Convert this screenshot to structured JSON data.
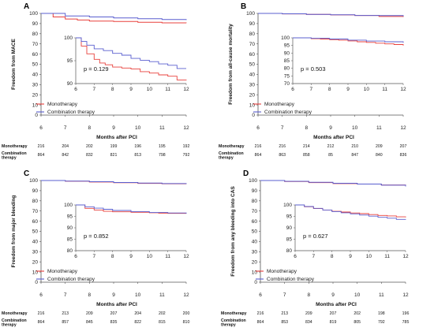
{
  "colors": {
    "monotherapy": "#e8403c",
    "combination": "#5a5fcf",
    "axis": "#555555"
  },
  "chart_data": [
    {
      "type": "line",
      "panel": "A",
      "ylabel": "Freedom from MACE",
      "xlabel": "Months after PCI",
      "xlim": [
        6,
        12
      ],
      "ylim": [
        0,
        100
      ],
      "x_ticks": [
        "6",
        "7",
        "8",
        "9",
        "10",
        "11",
        "12"
      ],
      "y_ticks": [
        "0",
        "10",
        "20",
        "30",
        "40",
        "50",
        "60",
        "70",
        "80",
        "90",
        "100"
      ],
      "series": [
        {
          "name": "Monotherapy",
          "x": [
            6,
            6.5,
            7,
            7.5,
            8,
            9,
            10,
            11,
            12
          ],
          "values": [
            100,
            96.5,
            94.5,
            93.5,
            92.5,
            92,
            91.3,
            90.7,
            90.5
          ]
        },
        {
          "name": "Combination therapy",
          "x": [
            6,
            7,
            8,
            9,
            10,
            11,
            12
          ],
          "values": [
            100,
            97.5,
            96.5,
            95.5,
            94.8,
            94,
            93.5
          ]
        }
      ],
      "inset": {
        "xlim": [
          6,
          12
        ],
        "ylim": [
          90,
          100
        ],
        "x_ticks": [
          "6",
          "7",
          "8",
          "9",
          "10",
          "11",
          "12"
        ],
        "y_ticks": [
          "90",
          "95",
          "100"
        ],
        "series": [
          {
            "name": "Monotherapy",
            "x": [
              6,
              6.3,
              6.6,
              7,
              7.3,
              7.6,
              8,
              8.5,
              9,
              9.5,
              10,
              10.5,
              11,
              11.5,
              12
            ],
            "values": [
              100,
              98.2,
              96.5,
              95.3,
              94.5,
              94.1,
              93.6,
              93.4,
              93.2,
              92.6,
              92.3,
              91.9,
              91.6,
              90.8,
              90.7
            ]
          },
          {
            "name": "Combination therapy",
            "x": [
              6,
              6.3,
              6.6,
              7,
              7.5,
              8,
              8.5,
              9,
              9.5,
              10,
              10.5,
              11,
              11.5,
              12
            ],
            "values": [
              100,
              99.2,
              98.4,
              97.6,
              97.2,
              96.6,
              96.2,
              95.5,
              95.1,
              94.8,
              94.3,
              94,
              93.3,
              93.3
            ]
          }
        ],
        "p_value": "p = 0.129"
      },
      "risk_table": {
        "rows": [
          {
            "label": "Monotherapy",
            "values": [
              "216",
              "204",
              "202",
              "199",
              "196",
              "195",
              "192"
            ]
          },
          {
            "label": "Combination therapy",
            "values": [
              "864",
              "842",
              "832",
              "821",
              "813",
              "798",
              "792"
            ]
          }
        ]
      }
    },
    {
      "type": "line",
      "panel": "B",
      "ylabel": "Freedom from all-cause mortality",
      "xlabel": "Months after PCI",
      "xlim": [
        6,
        12
      ],
      "ylim": [
        0,
        100
      ],
      "x_ticks": [
        "6",
        "7",
        "8",
        "9",
        "10",
        "11",
        "12"
      ],
      "y_ticks": [
        "0",
        "10",
        "20",
        "30",
        "40",
        "50",
        "60",
        "70",
        "80",
        "90",
        "100"
      ],
      "series": [
        {
          "name": "Monotherapy",
          "x": [
            6,
            7,
            8,
            9,
            10,
            11,
            12
          ],
          "values": [
            100,
            99.5,
            99,
            98.5,
            98,
            97,
            96.5
          ]
        },
        {
          "name": "Combination therapy",
          "x": [
            6,
            7,
            8,
            9,
            10,
            11,
            12
          ],
          "values": [
            100,
            99.6,
            99.1,
            98.6,
            98,
            97.8,
            97.2
          ]
        }
      ],
      "inset": {
        "xlim": [
          6,
          12
        ],
        "ylim": [
          70,
          100
        ],
        "x_ticks": [
          "6",
          "7",
          "8",
          "9",
          "10",
          "11",
          "12"
        ],
        "y_ticks": [
          "70",
          "75",
          "80",
          "85",
          "90",
          "95",
          "100"
        ],
        "series": [
          {
            "name": "Monotherapy",
            "x": [
              6,
              7,
              7.5,
              8,
              8.5,
              9,
              9.5,
              10,
              10.5,
              11,
              11.5,
              12
            ],
            "values": [
              100,
              99.5,
              99.2,
              98.8,
              98.5,
              98,
              97.4,
              97,
              96.5,
              96,
              95.6,
              95
            ]
          },
          {
            "name": "Combination therapy",
            "x": [
              6,
              7,
              8,
              9,
              10,
              11,
              12
            ],
            "values": [
              100,
              99.7,
              99.2,
              98.5,
              97.9,
              97.4,
              96.8
            ]
          }
        ],
        "p_value": "p = 0.503"
      },
      "risk_table": {
        "rows": [
          {
            "label": "Monotherapy",
            "values": [
              "216",
              "216",
              "214",
              "212",
              "210",
              "209",
              "207"
            ]
          },
          {
            "label": "Combination therapy",
            "values": [
              "864",
              "863",
              "858",
              "85",
              "847",
              "840",
              "836"
            ]
          }
        ]
      }
    },
    {
      "type": "line",
      "panel": "C",
      "ylabel": "Freedom from major bleeding",
      "xlabel": "Months after PCI",
      "xlim": [
        6,
        12
      ],
      "ylim": [
        0,
        100
      ],
      "x_ticks": [
        "6",
        "7",
        "8",
        "9",
        "10",
        "11",
        "12"
      ],
      "y_ticks": [
        "0",
        "10",
        "20",
        "30",
        "40",
        "50",
        "60",
        "70",
        "80",
        "90",
        "100"
      ],
      "series": [
        {
          "name": "Monotherapy",
          "x": [
            6,
            7,
            8,
            9,
            10,
            11,
            12
          ],
          "values": [
            100,
            99.3,
            98.5,
            97.8,
            97.2,
            96.8,
            96.5
          ]
        },
        {
          "name": "Combination therapy",
          "x": [
            6,
            7,
            8,
            9,
            10,
            11,
            12
          ],
          "values": [
            100,
            99.4,
            98.8,
            98.1,
            97.5,
            97,
            96.6
          ]
        }
      ],
      "inset": {
        "xlim": [
          6,
          12
        ],
        "ylim": [
          80,
          100
        ],
        "x_ticks": [
          "6",
          "7",
          "8",
          "9",
          "10",
          "11",
          "12"
        ],
        "y_ticks": [
          "80",
          "85",
          "90",
          "95",
          "100"
        ],
        "series": [
          {
            "name": "Monotherapy",
            "x": [
              6,
              6.5,
              7,
              7.5,
              8,
              9,
              10,
              10.5,
              11,
              12
            ],
            "values": [
              100,
              98.5,
              97.8,
              97.2,
              97,
              96.8,
              96.6,
              96.4,
              96.3,
              96.2
            ]
          },
          {
            "name": "Combination therapy",
            "x": [
              6,
              6.5,
              7,
              7.5,
              8,
              9,
              10,
              11,
              12
            ],
            "values": [
              100,
              99.2,
              98.6,
              98.1,
              97.6,
              97.1,
              96.7,
              96.5,
              96.2
            ]
          }
        ],
        "p_value": "p = 0.852"
      },
      "risk_table": {
        "rows": [
          {
            "label": "Monotherapy",
            "values": [
              "216",
              "213",
              "209",
              "207",
              "204",
              "202",
              "200"
            ]
          },
          {
            "label": "Combination therapy",
            "values": [
              "864",
              "857",
              "845",
              "835",
              "822",
              "815",
              "810"
            ]
          }
        ]
      }
    },
    {
      "type": "line",
      "panel": "D",
      "ylabel": "Freedom from any bleeding into CAS",
      "xlabel": "Months after PCI",
      "xlim": [
        6,
        12
      ],
      "ylim": [
        0,
        100
      ],
      "x_ticks": [
        "6",
        "7",
        "8",
        "9",
        "10",
        "11",
        "12"
      ],
      "y_ticks": [
        "0",
        "10",
        "20",
        "30",
        "40",
        "50",
        "60",
        "70",
        "80",
        "90",
        "100"
      ],
      "series": [
        {
          "name": "Monotherapy",
          "x": [
            6,
            7,
            8,
            9,
            10,
            11,
            12
          ],
          "values": [
            100,
            99,
            98,
            97,
            96.5,
            95.5,
            95
          ]
        },
        {
          "name": "Combination therapy",
          "x": [
            6,
            7,
            8,
            9,
            10,
            11,
            12
          ],
          "values": [
            100,
            99.2,
            98.2,
            97.3,
            96.5,
            95.4,
            94.2
          ]
        }
      ],
      "inset": {
        "xlim": [
          6,
          12
        ],
        "ylim": [
          80,
          100
        ],
        "x_ticks": [
          "6",
          "7",
          "8",
          "9",
          "10",
          "11",
          "12"
        ],
        "y_ticks": [
          "80",
          "85",
          "90",
          "95",
          "100"
        ],
        "series": [
          {
            "name": "Monotherapy",
            "x": [
              6,
              6.5,
              7,
              7.5,
              8,
              8.5,
              9,
              9.5,
              10,
              10.5,
              11,
              11.5,
              12
            ],
            "values": [
              100,
              99.2,
              98.4,
              97.8,
              97.2,
              96.9,
              96.5,
              96.2,
              95.8,
              95.4,
              95.2,
              94.8,
              94.6
            ]
          },
          {
            "name": "Combination therapy",
            "x": [
              6,
              6.5,
              7,
              7.5,
              8,
              8.5,
              9,
              9.5,
              10,
              10.5,
              11,
              11.5,
              12
            ],
            "values": [
              100,
              99.3,
              98.5,
              97.8,
              97.1,
              96.6,
              96.1,
              95.6,
              95.1,
              94.6,
              94.2,
              93.7,
              93.5
            ]
          }
        ],
        "p_value": "p = 0.627"
      },
      "risk_table": {
        "rows": [
          {
            "label": "Monotherapy",
            "values": [
              "216",
              "213",
              "209",
              "207",
              "202",
              "198",
              "196"
            ]
          },
          {
            "label": "Combination therapy",
            "values": [
              "864",
              "853",
              "834",
              "819",
              "805",
              "792",
              "785"
            ]
          }
        ]
      }
    }
  ]
}
